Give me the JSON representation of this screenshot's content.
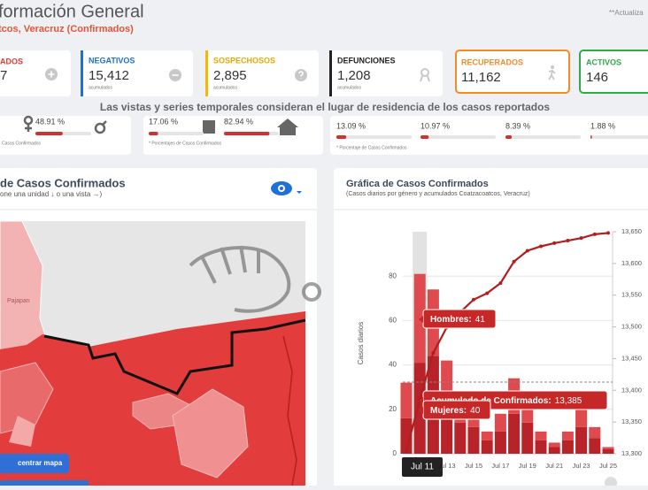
{
  "header": {
    "title": "formación General",
    "subtitle": "tcos, Veracruz (Confirmados)",
    "update_note": "**Actualiza"
  },
  "cards": [
    {
      "label": "ADOS",
      "value": "7"
    },
    {
      "label": "NEGATIVOS",
      "value": "15,412",
      "note": "acumulados"
    },
    {
      "label": "SOSPECHOSOS",
      "value": "2,895",
      "note": "acumulados"
    },
    {
      "label": "DEFUNCIONES",
      "value": "1,208",
      "note": "acumulados"
    },
    {
      "label": "RECUPERADOS",
      "value": "11,162"
    },
    {
      "label": "ACTIVOS",
      "value": "146"
    }
  ],
  "banner": "Las vistas y series temporales consideran el lugar de residencia de los casos reportados",
  "stats": [
    {
      "percents": [
        {
          "value": 48.91,
          "label": "48.91 %"
        }
      ],
      "note": "Casos Confirmados"
    },
    {
      "percents": [
        {
          "value": 17.06,
          "label": "17.06 %"
        },
        {
          "value": 82.94,
          "label": "82.94 %"
        }
      ],
      "note": "* Porcentajes  de Casos Confirmados"
    },
    {
      "percents": [
        {
          "value": 13.09,
          "label": "13.09 %"
        },
        {
          "value": 10.97,
          "label": "10.97 %"
        },
        {
          "value": 8.39,
          "label": "8.39 %"
        },
        {
          "value": 1.88,
          "label": "1.88 %"
        }
      ],
      "note": "* Porcentaje  de Casos Confirmados"
    }
  ],
  "map_panel": {
    "title": "de Casos Confirmados",
    "subtitle": "one una unidad ↓ o una vista →)",
    "place_label": "Pajapan",
    "button": "centrar mapa"
  },
  "chart_panel": {
    "title": "Gráfica de Casos Confirmados",
    "subtitle": "(Casos diarios por género y acumulados Coatzacoatcos, Veracruz)"
  },
  "chart_data": {
    "type": "bar",
    "y_label": "Casos diarios",
    "categories": [
      null,
      "Jul 11",
      null,
      "Jul 13",
      null,
      "Jul 15",
      null,
      "Jul 17",
      null,
      "Jul 19",
      null,
      "Jul 21",
      null,
      "Jul 23",
      null,
      "Jul 25"
    ],
    "ylim": [
      0,
      100
    ],
    "yticks": [
      0,
      20,
      40,
      60,
      80
    ],
    "y2lim": [
      13300,
      13650
    ],
    "y2ticks": [
      {
        "value": 13300,
        "label": "13,300"
      },
      {
        "value": 13350,
        "label": "13,350"
      },
      {
        "value": 13400,
        "label": "13,400"
      },
      {
        "value": 13450,
        "label": "13,450"
      },
      {
        "value": 13500,
        "label": "13,500"
      },
      {
        "value": 13550,
        "label": "13,550"
      },
      {
        "value": 13600,
        "label": "13,600"
      },
      {
        "value": 13650,
        "label": "13,650"
      }
    ],
    "grid": true,
    "tooltip_separator": ":",
    "series": [
      {
        "name": "Hombres",
        "color": "#b8232a",
        "values": [
          16,
          41,
          44,
          22,
          14,
          12,
          6,
          10,
          18,
          14,
          6,
          3,
          6,
          12,
          7,
          2
        ]
      },
      {
        "name": "Mujeres",
        "color": "#de4a4e",
        "values": [
          16,
          40,
          30,
          20,
          10,
          8,
          4,
          8,
          16,
          10,
          4,
          2,
          4,
          8,
          5,
          1
        ]
      },
      {
        "name": "Acumulado de Confirmados",
        "color": "#b01e1e",
        "axis": "y2",
        "type": "line",
        "values": [
          13304,
          13385,
          13459,
          13499,
          13523,
          13543,
          13553,
          13569,
          13603,
          13620,
          13627,
          13632,
          13636,
          13640,
          13646,
          13648
        ],
        "value_labels": [
          null,
          "13,385",
          null,
          null,
          null,
          null,
          null,
          null,
          null,
          null,
          null,
          null,
          null,
          null,
          null,
          null
        ]
      }
    ]
  }
}
